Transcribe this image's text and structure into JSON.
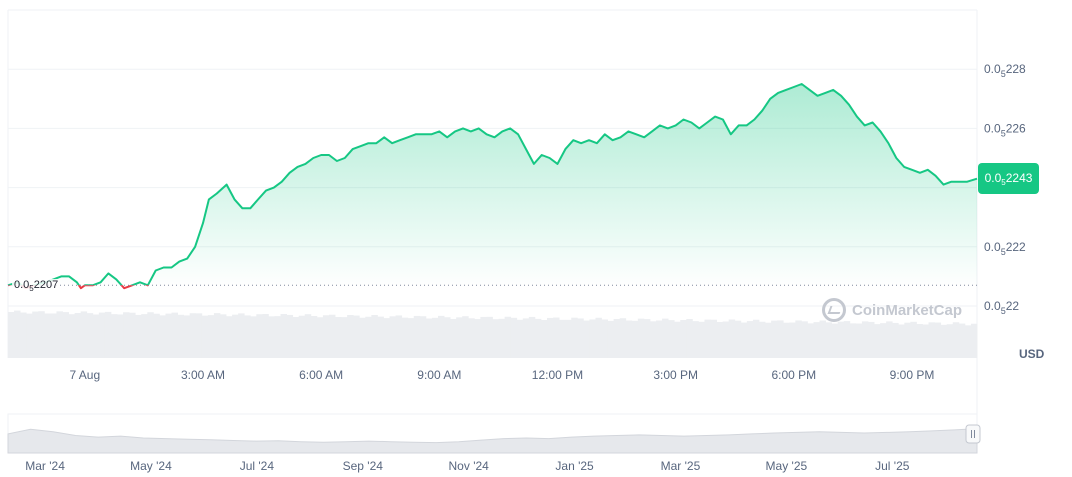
{
  "currency_label": "USD",
  "current_price": {
    "prefix": "0.0",
    "sub": "5",
    "suffix": "2243"
  },
  "reference_price": {
    "prefix": "0.0",
    "sub": "5",
    "suffix": "2207"
  },
  "watermark": "CoinMarketCap",
  "colors": {
    "up": "#16c784",
    "down": "#ea3943",
    "grid": "#eff2f5",
    "volume": "#eceef1",
    "text": "#58667e"
  },
  "chart_data": {
    "type": "area",
    "grid": true,
    "y_tick_labels": [
      {
        "prefix": "0.0",
        "sub": "5",
        "suffix": "228"
      },
      {
        "prefix": "0.0",
        "sub": "5",
        "suffix": "226"
      },
      {
        "prefix": "0.0",
        "sub": "5",
        "suffix": "222"
      },
      {
        "prefix": "0.0",
        "sub": "5",
        "suffix": "22"
      }
    ],
    "y_ticks": [
      2.28e-05,
      2.26e-05,
      2.22e-05,
      2.2e-05
    ],
    "ylim": [
      2.2e-05,
      2.3e-05
    ],
    "x_tick_labels": [
      "7 Aug",
      "3:00 AM",
      "6:00 AM",
      "9:00 AM",
      "12:00 PM",
      "3:00 PM",
      "6:00 PM",
      "9:00 PM"
    ],
    "x_tick_hours": [
      0,
      3,
      6,
      9,
      12,
      15,
      18,
      21
    ],
    "xlim_hours": [
      -1.95,
      22.65
    ],
    "reference_value": 2.207e-05,
    "series": [
      {
        "points": [
          [
            -1.95,
            2.207e-05
          ],
          [
            -1.7,
            2.208e-05
          ],
          [
            -1.5,
            2.206e-05
          ],
          [
            -1.3,
            2.207e-05
          ],
          [
            -1.0,
            2.208e-05
          ],
          [
            -0.8,
            2.209e-05
          ],
          [
            -0.6,
            2.21e-05
          ],
          [
            -0.4,
            2.21e-05
          ],
          [
            -0.2,
            2.208e-05
          ],
          [
            -0.1,
            2.206e-05
          ],
          [
            0.0,
            2.207e-05
          ],
          [
            0.2,
            2.207e-05
          ],
          [
            0.4,
            2.208e-05
          ],
          [
            0.6,
            2.211e-05
          ],
          [
            0.8,
            2.209e-05
          ],
          [
            1.0,
            2.206e-05
          ],
          [
            1.2,
            2.207e-05
          ],
          [
            1.4,
            2.208e-05
          ],
          [
            1.6,
            2.207e-05
          ],
          [
            1.8,
            2.212e-05
          ],
          [
            2.0,
            2.213e-05
          ],
          [
            2.2,
            2.213e-05
          ],
          [
            2.4,
            2.215e-05
          ],
          [
            2.6,
            2.216e-05
          ],
          [
            2.8,
            2.22e-05
          ],
          [
            3.0,
            2.228e-05
          ],
          [
            3.15,
            2.236e-05
          ],
          [
            3.35,
            2.238e-05
          ],
          [
            3.6,
            2.241e-05
          ],
          [
            3.8,
            2.236e-05
          ],
          [
            4.0,
            2.233e-05
          ],
          [
            4.2,
            2.233e-05
          ],
          [
            4.4,
            2.236e-05
          ],
          [
            4.6,
            2.239e-05
          ],
          [
            4.8,
            2.24e-05
          ],
          [
            5.0,
            2.242e-05
          ],
          [
            5.2,
            2.245e-05
          ],
          [
            5.4,
            2.247e-05
          ],
          [
            5.6,
            2.248e-05
          ],
          [
            5.8,
            2.25e-05
          ],
          [
            6.0,
            2.251e-05
          ],
          [
            6.2,
            2.251e-05
          ],
          [
            6.4,
            2.249e-05
          ],
          [
            6.6,
            2.25e-05
          ],
          [
            6.8,
            2.253e-05
          ],
          [
            7.0,
            2.254e-05
          ],
          [
            7.2,
            2.255e-05
          ],
          [
            7.4,
            2.255e-05
          ],
          [
            7.6,
            2.257e-05
          ],
          [
            7.8,
            2.255e-05
          ],
          [
            8.0,
            2.256e-05
          ],
          [
            8.2,
            2.257e-05
          ],
          [
            8.4,
            2.258e-05
          ],
          [
            8.6,
            2.258e-05
          ],
          [
            8.8,
            2.258e-05
          ],
          [
            9.0,
            2.259e-05
          ],
          [
            9.2,
            2.257e-05
          ],
          [
            9.4,
            2.259e-05
          ],
          [
            9.6,
            2.26e-05
          ],
          [
            9.8,
            2.259e-05
          ],
          [
            10.0,
            2.26e-05
          ],
          [
            10.2,
            2.258e-05
          ],
          [
            10.4,
            2.257e-05
          ],
          [
            10.6,
            2.259e-05
          ],
          [
            10.8,
            2.26e-05
          ],
          [
            11.0,
            2.258e-05
          ],
          [
            11.2,
            2.253e-05
          ],
          [
            11.4,
            2.248e-05
          ],
          [
            11.6,
            2.251e-05
          ],
          [
            11.8,
            2.25e-05
          ],
          [
            12.0,
            2.248e-05
          ],
          [
            12.2,
            2.253e-05
          ],
          [
            12.4,
            2.256e-05
          ],
          [
            12.6,
            2.255e-05
          ],
          [
            12.8,
            2.256e-05
          ],
          [
            13.0,
            2.255e-05
          ],
          [
            13.2,
            2.258e-05
          ],
          [
            13.4,
            2.256e-05
          ],
          [
            13.6,
            2.257e-05
          ],
          [
            13.8,
            2.259e-05
          ],
          [
            14.0,
            2.258e-05
          ],
          [
            14.2,
            2.257e-05
          ],
          [
            14.4,
            2.259e-05
          ],
          [
            14.6,
            2.261e-05
          ],
          [
            14.8,
            2.26e-05
          ],
          [
            15.0,
            2.261e-05
          ],
          [
            15.2,
            2.263e-05
          ],
          [
            15.4,
            2.262e-05
          ],
          [
            15.6,
            2.26e-05
          ],
          [
            15.8,
            2.262e-05
          ],
          [
            16.0,
            2.264e-05
          ],
          [
            16.2,
            2.263e-05
          ],
          [
            16.4,
            2.258e-05
          ],
          [
            16.6,
            2.261e-05
          ],
          [
            16.8,
            2.261e-05
          ],
          [
            17.0,
            2.263e-05
          ],
          [
            17.2,
            2.266e-05
          ],
          [
            17.4,
            2.27e-05
          ],
          [
            17.6,
            2.272e-05
          ],
          [
            17.8,
            2.273e-05
          ],
          [
            18.0,
            2.274e-05
          ],
          [
            18.2,
            2.275e-05
          ],
          [
            18.4,
            2.273e-05
          ],
          [
            18.6,
            2.271e-05
          ],
          [
            18.8,
            2.272e-05
          ],
          [
            19.0,
            2.273e-05
          ],
          [
            19.2,
            2.271e-05
          ],
          [
            19.4,
            2.268e-05
          ],
          [
            19.6,
            2.264e-05
          ],
          [
            19.8,
            2.261e-05
          ],
          [
            20.0,
            2.262e-05
          ],
          [
            20.2,
            2.259e-05
          ],
          [
            20.4,
            2.255e-05
          ],
          [
            20.6,
            2.25e-05
          ],
          [
            20.8,
            2.247e-05
          ],
          [
            21.0,
            2.246e-05
          ],
          [
            21.2,
            2.245e-05
          ],
          [
            21.4,
            2.246e-05
          ],
          [
            21.6,
            2.244e-05
          ],
          [
            21.8,
            2.241e-05
          ],
          [
            22.0,
            2.242e-05
          ],
          [
            22.2,
            2.242e-05
          ],
          [
            22.4,
            2.242e-05
          ],
          [
            22.65,
            2.243e-05
          ]
        ]
      }
    ],
    "navigator": {
      "tick_labels": [
        "Mar '24",
        "May '24",
        "Jul '24",
        "Sep '24",
        "Nov '24",
        "Jan '25",
        "Mar '25",
        "May '25",
        "Jul '25"
      ],
      "tick_months": [
        2,
        4,
        6,
        8,
        10,
        12,
        14,
        16,
        18
      ],
      "xlim_months": [
        1.3,
        19.6
      ],
      "profile": [
        0.55,
        0.7,
        0.62,
        0.5,
        0.45,
        0.48,
        0.42,
        0.4,
        0.38,
        0.36,
        0.34,
        0.32,
        0.33,
        0.3,
        0.28,
        0.3,
        0.32,
        0.3,
        0.28,
        0.27,
        0.3,
        0.35,
        0.4,
        0.42,
        0.4,
        0.45,
        0.48,
        0.5,
        0.52,
        0.5,
        0.48,
        0.5,
        0.52,
        0.55,
        0.58,
        0.6,
        0.62,
        0.6,
        0.58,
        0.6,
        0.62,
        0.65,
        0.68,
        0.72
      ]
    }
  }
}
